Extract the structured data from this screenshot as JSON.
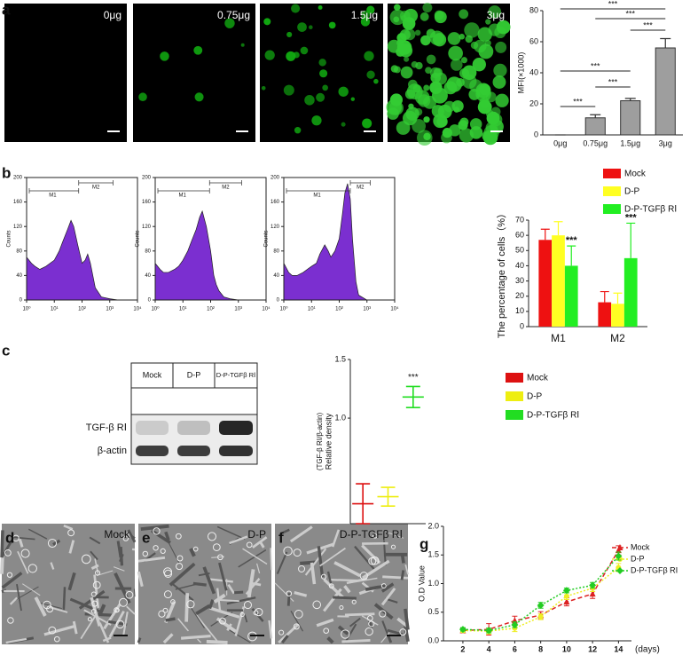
{
  "figure": {
    "panel_letters": [
      "a",
      "b",
      "c",
      "d",
      "e",
      "f",
      "g"
    ],
    "fluorescence_labels": [
      "0μg",
      "0.75μg",
      "1.5μg",
      "3μg"
    ],
    "phase_labels": [
      "Mock",
      "D-P",
      "D-P-TGFβ RⅠ"
    ],
    "blot": {
      "columns": [
        "Mock",
        "D-P",
        "D-P-TGFβ RⅠ"
      ],
      "rows": [
        "TGF-β RⅠ",
        "β-actin"
      ]
    }
  },
  "chart_data": [
    {
      "type": "bar",
      "ylabel": "MFI(×1000)",
      "categories": [
        "0μg",
        "0.75μg",
        "1.5μg",
        "3μg"
      ],
      "values": [
        0,
        11,
        22,
        56
      ],
      "errors": [
        0,
        2,
        1.5,
        6
      ],
      "color": "#9e9e9e",
      "ylim": [
        0,
        80
      ],
      "yticks": [
        0,
        20,
        40,
        60,
        80
      ],
      "significance": [
        "***",
        "***",
        "***",
        "***",
        "***",
        "***"
      ]
    },
    {
      "type": "area",
      "ylabel": "Counts",
      "xscale": "log",
      "x": [
        1,
        1.5,
        2,
        3,
        5,
        7,
        10,
        15,
        20,
        30,
        40,
        50,
        70,
        100,
        130,
        160,
        200,
        300,
        500,
        1000,
        2000,
        10000
      ],
      "values": [
        70,
        60,
        55,
        50,
        55,
        60,
        65,
        80,
        95,
        115,
        130,
        120,
        90,
        60,
        65,
        75,
        60,
        20,
        5,
        2,
        0,
        0
      ],
      "color": "#7b2fd0",
      "xlim": [
        1,
        10000
      ],
      "xticks": [
        {
          "value": 1,
          "label": "10⁰"
        },
        {
          "value": 10,
          "label": "10¹"
        },
        {
          "value": 100,
          "label": "10²"
        },
        {
          "value": 1000,
          "label": "10³"
        },
        {
          "value": 10000,
          "label": "10⁴"
        }
      ],
      "ylim": [
        0,
        200
      ],
      "yticks": [
        0,
        40,
        80,
        120,
        160,
        200
      ],
      "gates": [
        "M1",
        "M2"
      ]
    },
    {
      "type": "area",
      "ylabel": "Counts",
      "xscale": "log",
      "x": [
        1,
        1.5,
        2,
        3,
        5,
        7,
        10,
        15,
        20,
        30,
        40,
        50,
        70,
        100,
        130,
        160,
        200,
        300,
        500,
        1000,
        10000
      ],
      "values": [
        60,
        50,
        45,
        45,
        50,
        55,
        65,
        80,
        95,
        115,
        135,
        145,
        120,
        80,
        40,
        25,
        15,
        5,
        2,
        0,
        0
      ],
      "color": "#7b2fd0",
      "xlim": [
        1,
        10000
      ],
      "xticks": [
        {
          "value": 1,
          "label": "10⁰"
        },
        {
          "value": 10,
          "label": "10¹"
        },
        {
          "value": 100,
          "label": "10²"
        },
        {
          "value": 1000,
          "label": "10³"
        },
        {
          "value": 10000,
          "label": "10⁴"
        }
      ],
      "ylim": [
        0,
        200
      ],
      "yticks": [
        0,
        40,
        80,
        120,
        160,
        200
      ],
      "gates": [
        "M1",
        "M2"
      ]
    },
    {
      "type": "area",
      "ylabel": "Counts",
      "xscale": "log",
      "x": [
        1,
        1.5,
        2,
        3,
        5,
        7,
        10,
        15,
        20,
        30,
        40,
        50,
        70,
        100,
        130,
        160,
        200,
        250,
        300,
        400,
        500,
        1000,
        10000
      ],
      "values": [
        60,
        45,
        40,
        40,
        45,
        50,
        55,
        60,
        75,
        90,
        80,
        70,
        80,
        100,
        140,
        175,
        190,
        165,
        100,
        30,
        8,
        0,
        0
      ],
      "color": "#7b2fd0",
      "xlim": [
        1,
        10000
      ],
      "xticks": [
        {
          "value": 1,
          "label": "10⁰"
        },
        {
          "value": 10,
          "label": "10¹"
        },
        {
          "value": 100,
          "label": "10²"
        },
        {
          "value": 1000,
          "label": "10³"
        },
        {
          "value": 10000,
          "label": "10⁴"
        }
      ],
      "ylim": [
        0,
        200
      ],
      "yticks": [
        0,
        40,
        80,
        120,
        160,
        200
      ],
      "gates": [
        "M1",
        "M2"
      ]
    },
    {
      "type": "bar",
      "ylabel": "The percentage of cells（%）",
      "categories": [
        "M1",
        "M2"
      ],
      "series": [
        {
          "name": "Mock",
          "color": "#ee1111",
          "values": [
            57,
            16
          ],
          "errors": [
            7,
            7
          ]
        },
        {
          "name": "D-P",
          "color": "#ffff22",
          "values": [
            60,
            15
          ],
          "errors": [
            9,
            7
          ]
        },
        {
          "name": "D-P-TGFβ RⅠ",
          "color": "#22ee22",
          "values": [
            40,
            45
          ],
          "errors": [
            13,
            23
          ]
        }
      ],
      "ylim": [
        0,
        70
      ],
      "yticks": [
        0,
        10,
        20,
        30,
        40,
        50,
        60,
        70
      ],
      "significance": [
        "***",
        "***"
      ]
    },
    {
      "type": "errorbar",
      "ylabel": "Relative density",
      "ylabel2": "(TGF-β RⅠ/β-actin)",
      "series": [
        {
          "name": "Mock",
          "color": "#dd1111",
          "values": [
            0.27
          ],
          "errors": [
            0.17
          ]
        },
        {
          "name": "D-P",
          "color": "#eeee11",
          "values": [
            0.33
          ],
          "errors": [
            0.08
          ]
        },
        {
          "name": "D-P-TGFβ RⅠ",
          "color": "#22dd22",
          "values": [
            1.18
          ],
          "errors": [
            0.09
          ]
        }
      ],
      "ylim": [
        0.1,
        1.5
      ],
      "yticks": [
        {
          "value": 1,
          "label": "1.0"
        },
        {
          "value": 1.5,
          "label": "1.5"
        }
      ],
      "significance": [
        "***"
      ]
    },
    {
      "type": "line",
      "xlabel": "(days)",
      "ylabel": "O.D Value",
      "x": [
        2,
        4,
        6,
        8,
        10,
        12,
        14
      ],
      "series": [
        {
          "name": "Mock",
          "color": "#dd2222",
          "marker": "triangle",
          "linestyle": "dashed",
          "values": [
            0.18,
            0.2,
            0.35,
            0.45,
            0.68,
            0.82,
            1.58
          ],
          "errors": [
            0.04,
            0.1,
            0.08,
            0.06,
            0.07,
            0.08,
            0.08
          ]
        },
        {
          "name": "D-P",
          "color": "#eeee22",
          "marker": "circle",
          "linestyle": "dotted",
          "values": [
            0.18,
            0.17,
            0.22,
            0.42,
            0.78,
            0.92,
            1.28
          ],
          "errors": [
            0.03,
            0.05,
            0.06,
            0.05,
            0.06,
            0.06,
            0.07
          ]
        },
        {
          "name": "D-P-TGFβ RⅠ",
          "color": "#22cc22",
          "marker": "diamond",
          "linestyle": "dotted",
          "values": [
            0.2,
            0.18,
            0.28,
            0.62,
            0.88,
            0.97,
            1.48
          ],
          "errors": [
            0.03,
            0.04,
            0.05,
            0.05,
            0.04,
            0.05,
            0.07
          ]
        }
      ],
      "xlim": [
        0.5,
        15
      ],
      "xticks": [
        2,
        4,
        6,
        8,
        10,
        12,
        14
      ],
      "ylim": [
        0,
        2
      ],
      "yticks": [
        {
          "value": 0,
          "label": "0.0"
        },
        {
          "value": 0.5,
          "label": "0.5"
        },
        {
          "value": 1,
          "label": "1.0"
        },
        {
          "value": 1.5,
          "label": "1.5"
        },
        {
          "value": 2,
          "label": "2.0"
        }
      ]
    }
  ]
}
